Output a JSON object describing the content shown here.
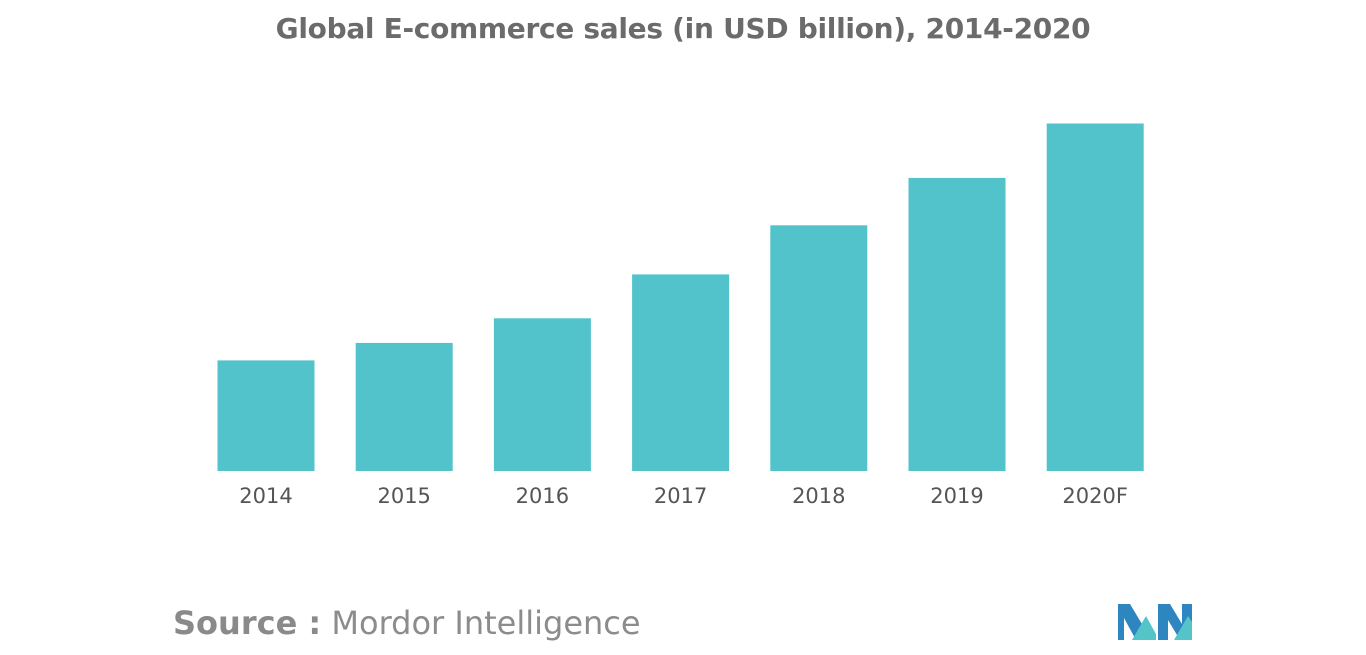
{
  "chart_data": {
    "type": "bar",
    "title": "Global E-commerce sales (in USD billion), 2014-2020",
    "categories": [
      "2014",
      "2015",
      "2016",
      "2017",
      "2018",
      "2019",
      "2020F"
    ],
    "values": [
      31.5,
      36.5,
      43.5,
      56,
      70,
      83.5,
      99
    ],
    "ylim": [
      0,
      100
    ],
    "xlabel": "",
    "ylabel": "",
    "grid": false,
    "legend": "none",
    "bar_color": "#52c3cb",
    "tick_label_color": "#555555"
  },
  "source": {
    "label": "Source :",
    "name": "Mordor Intelligence"
  },
  "logo": {
    "icon": "mordor-intelligence-logo",
    "colors": [
      "#2e86c1",
      "#55c4c8"
    ]
  }
}
